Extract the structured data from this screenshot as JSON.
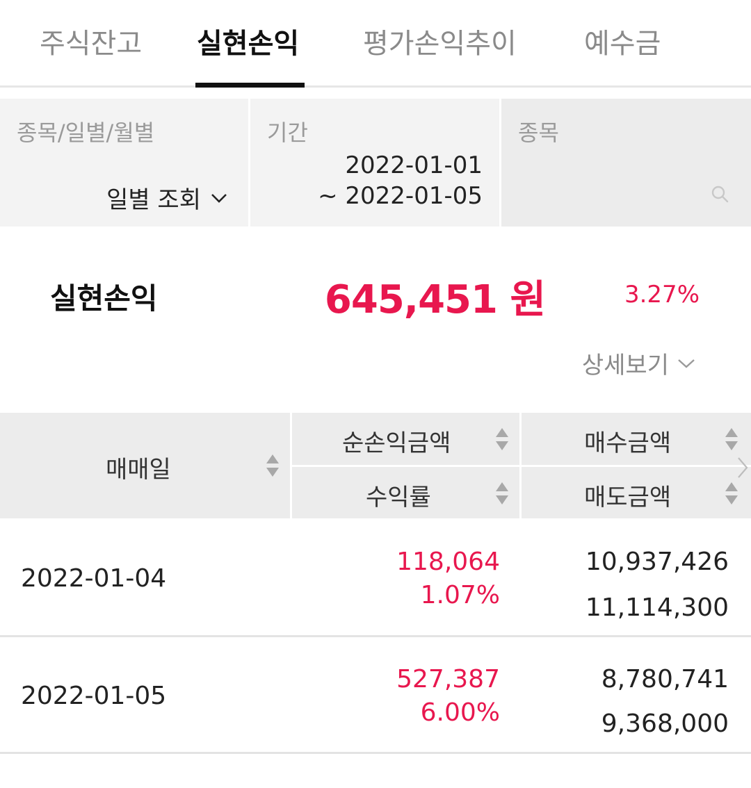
{
  "tabs": [
    {
      "label": "주식잔고"
    },
    {
      "label": "실현손익"
    },
    {
      "label": "평가손익추이"
    },
    {
      "label": "예수금"
    }
  ],
  "filter": {
    "type_label": "종목/일별/월별",
    "type_value": "일별 조회",
    "period_label": "기간",
    "period_start": "2022-01-01",
    "period_end": "~ 2022-01-05",
    "stock_label": "종목"
  },
  "summary": {
    "label": "실현손익",
    "amount": "645,451 원",
    "rate": "3.27%",
    "detail_label": "상세보기"
  },
  "table": {
    "headers": {
      "date": "매매일",
      "net_profit": "순손익금액",
      "return_rate": "수익률",
      "buy_amount": "매수금액",
      "sell_amount": "매도금액"
    },
    "rows": [
      {
        "date": "2022-01-04",
        "net_profit": "118,064",
        "return_rate": "1.07%",
        "buy_amount": "10,937,426",
        "sell_amount": "11,114,300"
      },
      {
        "date": "2022-01-05",
        "net_profit": "527,387",
        "return_rate": "6.00%",
        "buy_amount": "8,780,741",
        "sell_amount": "9,368,000"
      }
    ]
  },
  "colors": {
    "accent": "#e8174e",
    "header_bg": "#ececec",
    "filter_bg": "#f3f3f3"
  }
}
